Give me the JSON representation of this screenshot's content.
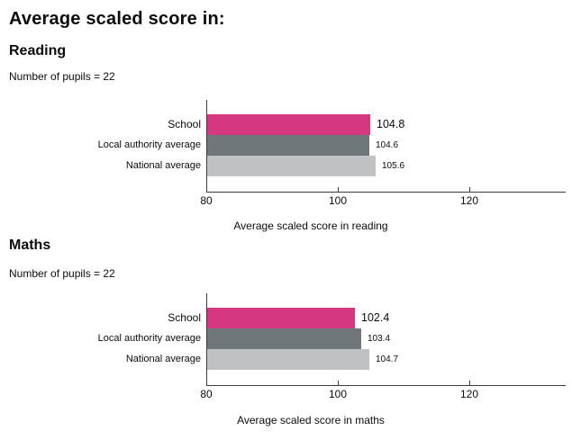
{
  "page": {
    "title": "Average scaled score in:"
  },
  "colors": {
    "school_bar": "#d53880",
    "local_authority_bar": "#6f777b",
    "national_bar": "#bfc1c3",
    "axis_line": "#3d3d3d",
    "text": "#0b0c0c"
  },
  "chart_data": [
    {
      "type": "bar",
      "orientation": "horizontal",
      "title": "Reading",
      "subtitle": "Number of pupils = 22",
      "categories": [
        "School",
        "Local authority average",
        "National average"
      ],
      "values": [
        104.8,
        104.6,
        105.6
      ],
      "value_labels": [
        "104.8",
        "104.6",
        "105.6"
      ],
      "xlabel": "Average scaled score in reading",
      "xlim": [
        80,
        135
      ],
      "xticks": [
        80,
        100,
        120
      ],
      "bar_colors": [
        "#d53880",
        "#6f777b",
        "#bfc1c3"
      ],
      "grid": false,
      "legend_position": "none"
    },
    {
      "type": "bar",
      "orientation": "horizontal",
      "title": "Maths",
      "subtitle": "Number of pupils = 22",
      "categories": [
        "School",
        "Local authority average",
        "National average"
      ],
      "values": [
        102.4,
        103.4,
        104.7
      ],
      "value_labels": [
        "102.4",
        "103.4",
        "104.7"
      ],
      "xlabel": "Average scaled score in maths",
      "xlim": [
        80,
        135
      ],
      "xticks": [
        80,
        100,
        120
      ],
      "bar_colors": [
        "#d53880",
        "#6f777b",
        "#bfc1c3"
      ],
      "grid": false,
      "legend_position": "none"
    }
  ]
}
